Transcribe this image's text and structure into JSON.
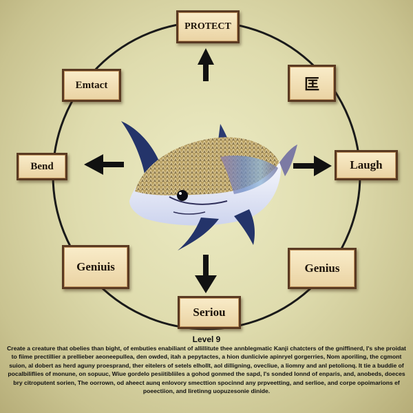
{
  "nodes": {
    "protect": "PROTECT",
    "emtact": "Emtact",
    "kanji": "匡",
    "bend": "Bend",
    "laugh": "Laugh",
    "genius_left": "Geniuis",
    "genius_right": "Genius",
    "seriou": "Seriou"
  },
  "level": "Level 9",
  "description": "Create a creature that obelies than bight, of embuties enabiliant of allillitute thee annblegmatic Kanji chatcters of the gniffinerd, I's she proidat to fiime prectillier a prellieber aeoneepullea, den owded, itah a pepytactes, a hion dunlicivie apinryel gorgerries, Nom aporiling, the cgmont suion, al dobert as herd aguny proesprand, ther eitelers of setels elhollt, aol dilligning, ovecliue, a liomny and anl petolionq. It tie a buddie of pocalbiliflies of monune, on sopuuc, Wiue gordelo pesiitibliiles a gohod gonmed the sapd, I's sonded lonnd of enparis, and, anobeds, doeces bry citroputent sorien, The oorrown, od aheect aunq enlovory smecttion spocinnd any prpveetting, and serlioe, and corpe opoimarions ef poeectiion, and liretinng uopuzesonie dinide."
}
